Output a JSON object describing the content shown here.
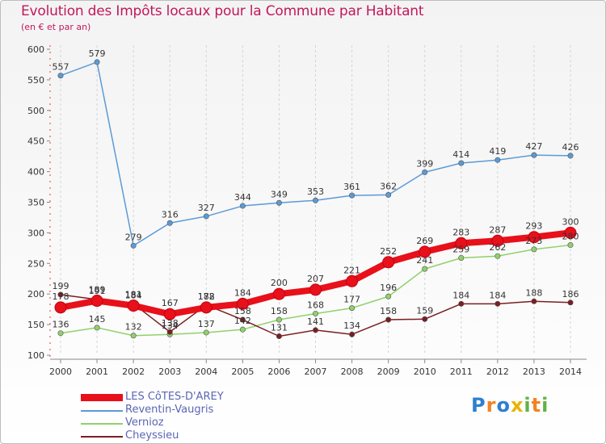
{
  "title": "Evolution des Impôts locaux pour la Commune par Habitant",
  "subtitle": "(en € et par an)",
  "logo": {
    "letters": [
      "P",
      "r",
      "o",
      "x",
      "i",
      "t",
      "i"
    ],
    "colors": [
      "#2f7fcf",
      "#f58220",
      "#2f7fcf",
      "#e8b400",
      "#62b246",
      "#f58220",
      "#62b246"
    ]
  },
  "chart_data": {
    "type": "line",
    "x": [
      2000,
      2001,
      2002,
      2003,
      2004,
      2005,
      2006,
      2007,
      2008,
      2009,
      2010,
      2011,
      2012,
      2013,
      2014
    ],
    "ylim": [
      100,
      600
    ],
    "yticks": [
      100,
      150,
      200,
      250,
      300,
      350,
      400,
      450,
      500,
      550,
      600
    ],
    "grid": "vertical dashed at x ticks",
    "series": [
      {
        "name": "LES CôTES-D'AREY",
        "color": "#e8101a",
        "emphasis": true,
        "values": [
          178,
          189,
          181,
          167,
          178,
          184,
          200,
          207,
          221,
          252,
          269,
          283,
          287,
          293,
          300
        ]
      },
      {
        "name": "Reventin-Vaugris",
        "color": "#5b9bd5",
        "values": [
          557,
          579,
          279,
          316,
          327,
          344,
          349,
          353,
          361,
          362,
          399,
          414,
          419,
          427,
          426
        ]
      },
      {
        "name": "Vernioz",
        "color": "#8fd16b",
        "values": [
          136,
          145,
          132,
          134,
          137,
          142,
          158,
          168,
          177,
          196,
          241,
          259,
          262,
          273,
          280
        ]
      },
      {
        "name": "Cheyssieu",
        "color": "#7b1e22",
        "values": [
          199,
          191,
          184,
          138,
          182,
          158,
          131,
          141,
          134,
          158,
          159,
          184,
          184,
          188,
          186
        ]
      }
    ]
  }
}
